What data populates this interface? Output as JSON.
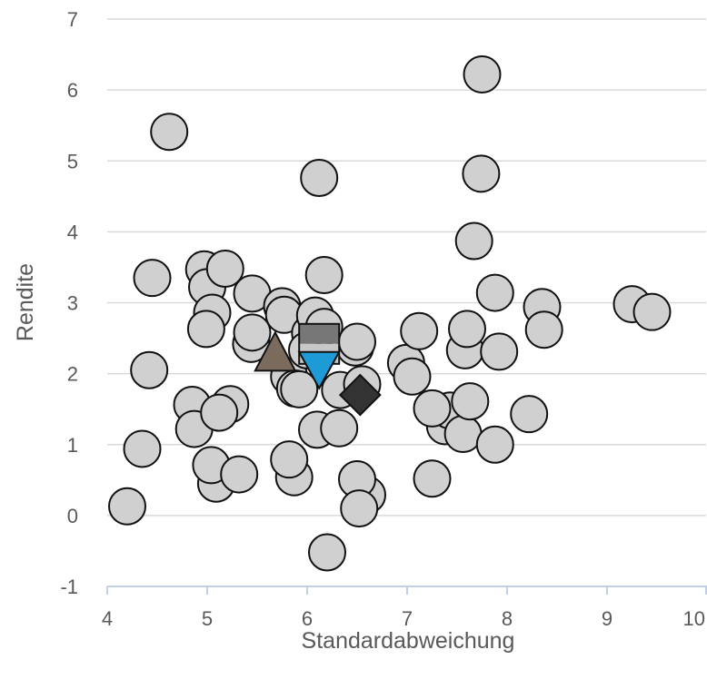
{
  "chart_data": {
    "type": "scatter",
    "title": "",
    "xlabel": "Standardabweichung",
    "ylabel": "Rendite",
    "xlim": [
      4,
      10
    ],
    "ylim": [
      -1,
      7
    ],
    "xticks": [
      "4",
      "5",
      "6",
      "7",
      "8",
      "9",
      "10"
    ],
    "yticks": [
      "-1",
      "0",
      "1",
      "2",
      "3",
      "4",
      "5",
      "6",
      "7"
    ],
    "grid": "horizontal",
    "legend": "none",
    "colors": {
      "circle_fill": "#d0d0d0",
      "marker_stroke": "#111111",
      "gridline": "#d9d9d9",
      "axis_line": "#bfd0e6",
      "square_top": "#777777",
      "square_bottom": "#c8c8c8",
      "triangle_up": "#7a6b5c",
      "triangle_down": "#1e9bd7",
      "diamond": "#333333"
    },
    "series": [
      {
        "marker": "circle",
        "points": [
          [
            4.2,
            0.13
          ],
          [
            4.35,
            0.94
          ],
          [
            4.42,
            2.05
          ],
          [
            4.45,
            3.35
          ],
          [
            4.62,
            5.41
          ],
          [
            4.85,
            1.56
          ],
          [
            4.87,
            1.22
          ],
          [
            4.97,
            3.47
          ],
          [
            5.0,
            3.22
          ],
          [
            5.05,
            2.86
          ],
          [
            4.99,
            2.63
          ],
          [
            5.23,
            1.57
          ],
          [
            5.09,
            0.45
          ],
          [
            5.12,
            1.45
          ],
          [
            5.04,
            0.71
          ],
          [
            5.18,
            3.48
          ],
          [
            5.32,
            0.58
          ],
          [
            5.45,
            3.13
          ],
          [
            5.44,
            2.42
          ],
          [
            5.45,
            2.58
          ],
          [
            5.75,
            2.95
          ],
          [
            5.77,
            2.83
          ],
          [
            5.82,
            1.96
          ],
          [
            5.88,
            1.79
          ],
          [
            5.87,
            0.54
          ],
          [
            5.82,
            0.79
          ],
          [
            5.92,
            1.78
          ],
          [
            6.03,
            2.57
          ],
          [
            6.0,
            2.33
          ],
          [
            6.08,
            2.82
          ],
          [
            6.17,
            2.66
          ],
          [
            6.12,
            4.76
          ],
          [
            6.17,
            3.39
          ],
          [
            6.1,
            1.21
          ],
          [
            6.33,
            1.77
          ],
          [
            6.32,
            1.23
          ],
          [
            6.48,
            2.37
          ],
          [
            6.5,
            2.45
          ],
          [
            6.55,
            1.85
          ],
          [
            6.6,
            0.29
          ],
          [
            6.5,
            0.51
          ],
          [
            6.52,
            0.1
          ],
          [
            6.2,
            -0.52
          ],
          [
            6.99,
            2.15
          ],
          [
            7.05,
            1.96
          ],
          [
            7.12,
            2.6
          ],
          [
            7.25,
            0.52
          ],
          [
            7.38,
            1.26
          ],
          [
            7.43,
            1.48
          ],
          [
            7.25,
            1.51
          ],
          [
            7.56,
            1.15
          ],
          [
            7.58,
            2.33
          ],
          [
            7.6,
            2.63
          ],
          [
            7.63,
            1.61
          ],
          [
            7.67,
            3.87
          ],
          [
            7.74,
            4.82
          ],
          [
            7.75,
            6.22
          ],
          [
            7.88,
            3.14
          ],
          [
            7.88,
            1.0
          ],
          [
            7.92,
            2.31
          ],
          [
            8.22,
            1.43
          ],
          [
            8.35,
            2.94
          ],
          [
            8.37,
            2.62
          ],
          [
            9.25,
            2.98
          ],
          [
            9.45,
            2.87
          ]
        ]
      },
      {
        "marker": "square-half",
        "points": [
          [
            6.12,
            2.42
          ]
        ]
      },
      {
        "marker": "triangle-up",
        "points": [
          [
            5.68,
            2.26
          ]
        ]
      },
      {
        "marker": "triangle-down",
        "points": [
          [
            6.12,
            2.14
          ]
        ]
      },
      {
        "marker": "diamond",
        "points": [
          [
            6.53,
            1.7
          ]
        ]
      }
    ]
  }
}
